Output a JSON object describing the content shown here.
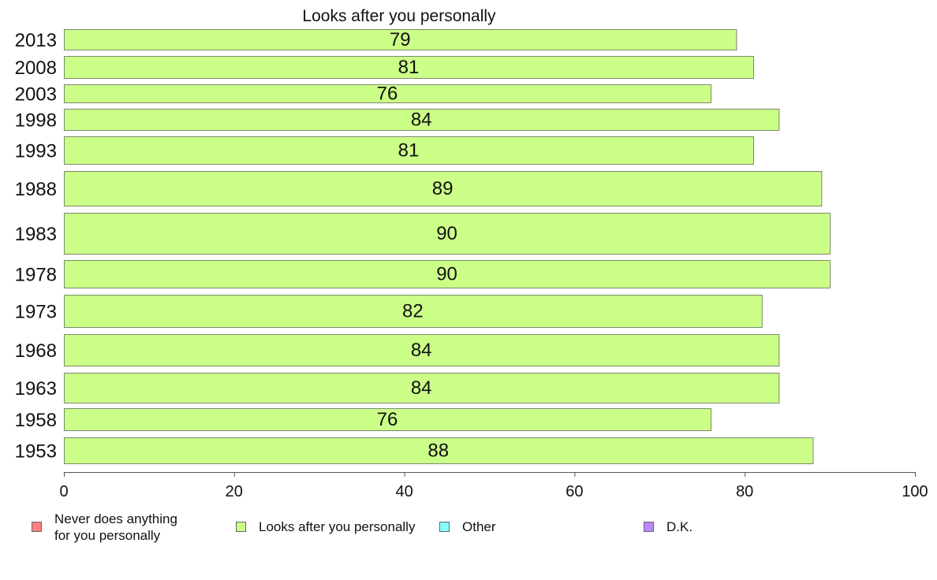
{
  "chart_data": {
    "type": "bar",
    "orientation": "horizontal",
    "title": "Looks after you personally",
    "categories": [
      "2013",
      "2008",
      "2003",
      "1998",
      "1993",
      "1988",
      "1983",
      "1978",
      "1973",
      "1968",
      "1963",
      "1958",
      "1953"
    ],
    "values": [
      79,
      81,
      76,
      84,
      81,
      89,
      90,
      90,
      82,
      84,
      84,
      76,
      88
    ],
    "xlim": [
      0,
      100
    ],
    "xticks": [
      "0",
      "20",
      "40",
      "60",
      "80",
      "100"
    ],
    "xlabel": "",
    "ylabel": "",
    "grid": false,
    "legend_position": "bottom",
    "legend": [
      {
        "label": "Never does anything\nfor you personally",
        "color": "#ff8080"
      },
      {
        "label": "Looks after you personally",
        "color": "#ccff88"
      },
      {
        "label": "Other",
        "color": "#88ffff"
      },
      {
        "label": "D.K.",
        "color": "#bb88ff"
      }
    ],
    "bar_color": "#ccff88"
  }
}
